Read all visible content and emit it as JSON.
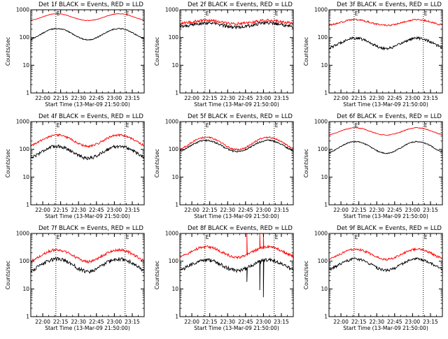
{
  "colors": {
    "events": "#000000",
    "lld": "#ff0000",
    "axis": "#000000",
    "background": "#ffffff"
  },
  "chart_data": [
    {
      "type": "line",
      "title": "Det 1f BLACK = Events, RED = LLD",
      "xlabel": "Start Time (13-Mar-09 21:50:00)",
      "ylabel": "Counts/sec",
      "xlim": [
        "21:50",
        "23:25"
      ],
      "ylim": [
        1,
        1000
      ],
      "yscale": "log",
      "xticks": [
        "22:00",
        "22:15",
        "22:30",
        "22:45",
        "23:00",
        "23:15"
      ],
      "yticks": [
        "1",
        "10",
        "100",
        "1000"
      ],
      "event_markers": [
        "22:11",
        "23:09"
      ],
      "marker_labels": [
        "E",
        "E"
      ],
      "series": [
        {
          "name": "Events",
          "color": "#000000",
          "base": 70,
          "peak": 210,
          "noise": 0.02,
          "spikes": []
        },
        {
          "name": "LLD",
          "color": "#ff0000",
          "base": 380,
          "peak": 720,
          "noise": 0.01,
          "spikes": []
        }
      ]
    },
    {
      "type": "line",
      "title": "Det 2f BLACK = Events, RED = LLD",
      "xlabel": "Start Time (13-Mar-09 21:50:00)",
      "ylabel": "Counts/sec",
      "xlim": [
        "21:50",
        "23:25"
      ],
      "ylim": [
        1,
        1000
      ],
      "yscale": "log",
      "xticks": [
        "22:00",
        "22:15",
        "22:30",
        "22:45",
        "23:00",
        "23:15"
      ],
      "yticks": [
        "1",
        "10",
        "100",
        "1000"
      ],
      "event_markers": [
        "22:11",
        "23:09"
      ],
      "marker_labels": [
        "E",
        "E"
      ],
      "series": [
        {
          "name": "Events",
          "color": "#000000",
          "base": 230,
          "peak": 340,
          "noise": 0.06,
          "spikes": []
        },
        {
          "name": "LLD",
          "color": "#ff0000",
          "base": 310,
          "peak": 420,
          "noise": 0.05,
          "spikes": []
        }
      ]
    },
    {
      "type": "line",
      "title": "Det 3f BLACK = Events, RED = LLD",
      "xlabel": "Start Time (13-Mar-09 21:50:00)",
      "ylabel": "Counts/sec",
      "xlim": [
        "21:50",
        "23:25"
      ],
      "ylim": [
        1,
        1000
      ],
      "yscale": "log",
      "xticks": [
        "22:00",
        "22:15",
        "22:30",
        "22:45",
        "23:00",
        "23:15"
      ],
      "yticks": [
        "1",
        "10",
        "100",
        "1000"
      ],
      "event_markers": [
        "22:11",
        "23:09"
      ],
      "marker_labels": [
        "E",
        "E"
      ],
      "series": [
        {
          "name": "Events",
          "color": "#000000",
          "base": 35,
          "peak": 95,
          "noise": 0.05,
          "spikes": []
        },
        {
          "name": "LLD",
          "color": "#ff0000",
          "base": 260,
          "peak": 440,
          "noise": 0.03,
          "spikes": []
        }
      ]
    },
    {
      "type": "line",
      "title": "Det 4f BLACK = Events, RED = LLD",
      "xlabel": "Start Time (13-Mar-09 21:50:00)",
      "ylabel": "Counts/sec",
      "xlim": [
        "21:50",
        "23:25"
      ],
      "ylim": [
        1,
        1000
      ],
      "yscale": "log",
      "xticks": [
        "22:00",
        "22:15",
        "22:30",
        "22:45",
        "23:00",
        "23:15"
      ],
      "yticks": [
        "1",
        "10",
        "100",
        "1000"
      ],
      "event_markers": [
        "22:11",
        "23:09"
      ],
      "marker_labels": [
        "E",
        "E"
      ],
      "series": [
        {
          "name": "Events",
          "color": "#000000",
          "base": 40,
          "peak": 130,
          "noise": 0.06,
          "spikes": []
        },
        {
          "name": "LLD",
          "color": "#ff0000",
          "base": 110,
          "peak": 330,
          "noise": 0.04,
          "spikes": []
        }
      ]
    },
    {
      "type": "line",
      "title": "Det 5f BLACK = Events, RED = LLD",
      "xlabel": "Start Time (13-Mar-09 21:50:00)",
      "ylabel": "Counts/sec",
      "xlim": [
        "21:50",
        "23:25"
      ],
      "ylim": [
        1,
        1000
      ],
      "yscale": "log",
      "xticks": [
        "22:00",
        "22:15",
        "22:30",
        "22:45",
        "23:00",
        "23:15"
      ],
      "yticks": [
        "1",
        "10",
        "100",
        "1000"
      ],
      "event_markers": [
        "22:11",
        "23:09"
      ],
      "marker_labels": [
        "E",
        "E"
      ],
      "series": [
        {
          "name": "Events",
          "color": "#000000",
          "base": 70,
          "peak": 210,
          "noise": 0.03,
          "spikes": []
        },
        {
          "name": "LLD",
          "color": "#ff0000",
          "base": 80,
          "peak": 270,
          "noise": 0.03,
          "spikes": []
        }
      ]
    },
    {
      "type": "line",
      "title": "Det 6f BLACK = Events, RED = LLD",
      "xlabel": "Start Time (13-Mar-09 21:50:00)",
      "ylabel": "Counts/sec",
      "xlim": [
        "21:50",
        "23:25"
      ],
      "ylim": [
        1,
        1000
      ],
      "yscale": "log",
      "xticks": [
        "22:00",
        "22:15",
        "22:30",
        "22:45",
        "23:00",
        "23:15"
      ],
      "yticks": [
        "1",
        "10",
        "100",
        "1000"
      ],
      "event_markers": [
        "22:11",
        "23:09"
      ],
      "marker_labels": [
        "E",
        "E"
      ],
      "series": [
        {
          "name": "Events",
          "color": "#000000",
          "base": 60,
          "peak": 190,
          "noise": 0.02,
          "spikes": []
        },
        {
          "name": "LLD",
          "color": "#ff0000",
          "base": 300,
          "peak": 600,
          "noise": 0.015,
          "spikes": []
        }
      ]
    },
    {
      "type": "line",
      "title": "Det 7f BLACK = Events, RED = LLD",
      "xlabel": "Start Time (13-Mar-09 21:50:00)",
      "ylabel": "Counts/sec",
      "xlim": [
        "21:50",
        "23:25"
      ],
      "ylim": [
        1,
        1000
      ],
      "yscale": "log",
      "xticks": [
        "22:00",
        "22:15",
        "22:30",
        "22:45",
        "23:00",
        "23:15"
      ],
      "yticks": [
        "1",
        "10",
        "100",
        "1000"
      ],
      "event_markers": [
        "22:11",
        "23:09"
      ],
      "marker_labels": [
        "E",
        "E"
      ],
      "series": [
        {
          "name": "Events",
          "color": "#000000",
          "base": 35,
          "peak": 120,
          "noise": 0.07,
          "spikes": []
        },
        {
          "name": "LLD",
          "color": "#ff0000",
          "base": 80,
          "peak": 260,
          "noise": 0.05,
          "spikes": []
        }
      ]
    },
    {
      "type": "line",
      "title": "Det 8f BLACK = Events, RED = LLD",
      "xlabel": "Start Time (13-Mar-09 21:50:00)",
      "ylabel": "Counts/sec",
      "xlim": [
        "21:50",
        "23:25"
      ],
      "ylim": [
        1,
        1000
      ],
      "yscale": "log",
      "xticks": [
        "22:00",
        "22:15",
        "22:30",
        "22:45",
        "23:00",
        "23:15"
      ],
      "yticks": [
        "1",
        "10",
        "100",
        "1000"
      ],
      "event_markers": [
        "22:11",
        "23:09"
      ],
      "marker_labels": [
        "E",
        "E"
      ],
      "series": [
        {
          "name": "Events",
          "color": "#000000",
          "base": 40,
          "peak": 110,
          "noise": 0.07,
          "spikes": [
            [
              "22:46",
              18
            ],
            [
              "22:57",
              9
            ],
            [
              "23:00",
              5
            ]
          ]
        },
        {
          "name": "LLD",
          "color": "#ff0000",
          "base": 120,
          "peak": 330,
          "noise": 0.05,
          "spikes": [
            [
              "22:46",
              2000
            ],
            [
              "22:57",
              2000
            ],
            [
              "23:00",
              2000
            ]
          ]
        }
      ]
    },
    {
      "type": "line",
      "title": "Det 9f BLACK = Events, RED = LLD",
      "xlabel": "Start Time (13-Mar-09 21:50:00)",
      "ylabel": "Counts/sec",
      "xlim": [
        "21:50",
        "23:25"
      ],
      "ylim": [
        1,
        1000
      ],
      "yscale": "log",
      "xticks": [
        "22:00",
        "22:15",
        "22:30",
        "22:45",
        "23:00",
        "23:15"
      ],
      "yticks": [
        "1",
        "10",
        "100",
        "1000"
      ],
      "event_markers": [
        "22:11",
        "23:09"
      ],
      "marker_labels": [
        "E",
        "E"
      ],
      "series": [
        {
          "name": "Events",
          "color": "#000000",
          "base": 40,
          "peak": 120,
          "noise": 0.05,
          "spikes": []
        },
        {
          "name": "LLD",
          "color": "#ff0000",
          "base": 100,
          "peak": 270,
          "noise": 0.04,
          "spikes": []
        }
      ]
    }
  ]
}
